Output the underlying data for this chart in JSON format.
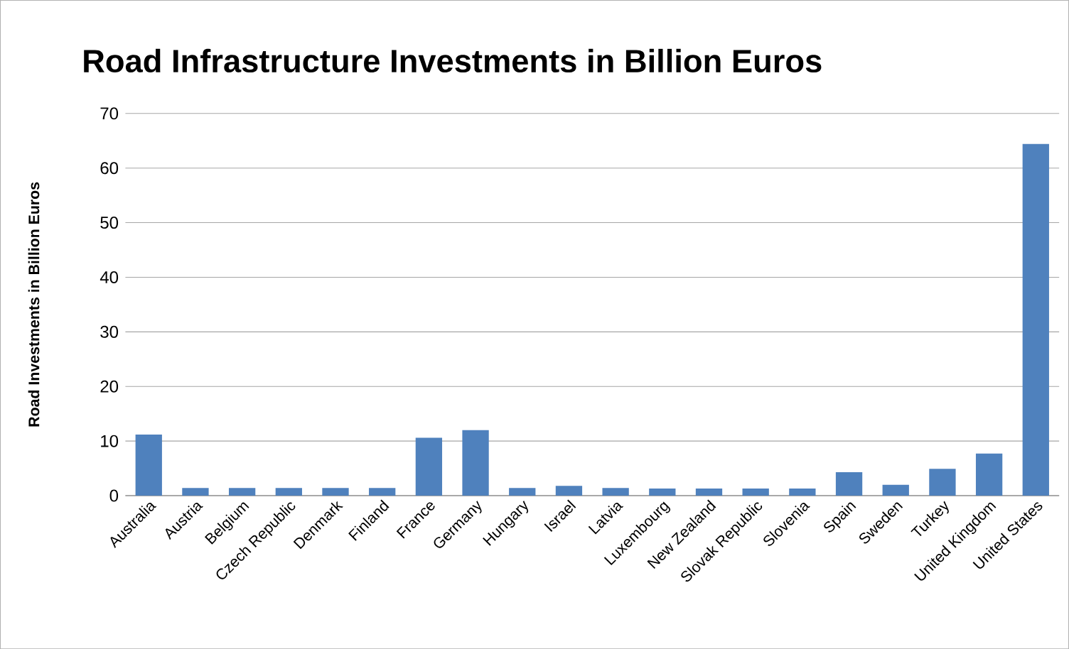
{
  "chart_data": {
    "type": "bar",
    "title": "Road Infrastructure Investments in Billion Euros",
    "ylabel": "Road Investments in Billion Euros",
    "categories": [
      "Australia",
      "Austria",
      "Belgium",
      "Czech Republic",
      "Denmark",
      "Finland",
      "France",
      "Germany",
      "Hungary",
      "Israel",
      "Latvia",
      "Luxembourg",
      "New Zealand",
      "Slovak Republic",
      "Slovenia",
      "Spain",
      "Sweden",
      "Turkey",
      "United Kingdom",
      "United States"
    ],
    "values": [
      11.2,
      1.4,
      1.4,
      1.4,
      1.4,
      1.4,
      10.6,
      12,
      1.4,
      1.8,
      1.4,
      1.3,
      1.3,
      1.3,
      1.3,
      4.3,
      2.0,
      4.9,
      7.7,
      64.4
    ],
    "color": "#4f81bd",
    "ylim": [
      0,
      70
    ],
    "yticks": [
      0,
      10,
      20,
      30,
      40,
      50,
      60,
      70
    ],
    "grid": "y"
  }
}
